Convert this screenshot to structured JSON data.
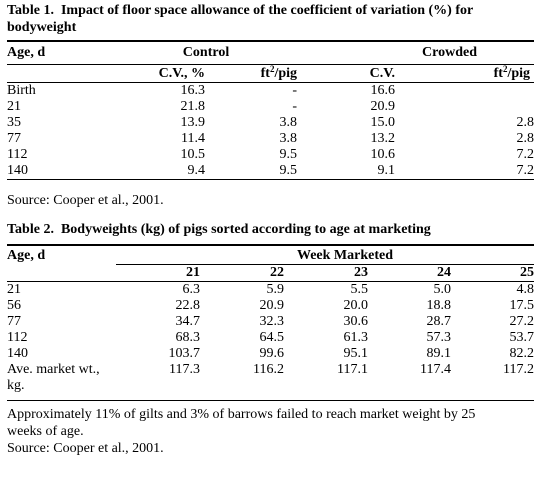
{
  "table1": {
    "caption_num": "Table 1.",
    "caption_text": "Impact of floor space allowance of the coefficient of variation (%) for bodyweight",
    "col_age": "Age, d",
    "group_control": "Control",
    "group_crowded": "Crowded",
    "sub_cv_control": "C.V., %",
    "sub_ft_control": "ft",
    "sub_cv_crowded": "C.V.",
    "sub_ft_crowded": "ft",
    "sup": "2",
    "per_pig": "/pig",
    "rows": [
      {
        "age": "Birth",
        "cv_c": "16.3",
        "ft_c": "-",
        "cv_x": "16.6",
        "ft_x": ""
      },
      {
        "age": "21",
        "cv_c": "21.8",
        "ft_c": "-",
        "cv_x": "20.9",
        "ft_x": ""
      },
      {
        "age": "35",
        "cv_c": "13.9",
        "ft_c": "3.8",
        "cv_x": "15.0",
        "ft_x": "2.8"
      },
      {
        "age": "77",
        "cv_c": "11.4",
        "ft_c": "3.8",
        "cv_x": "13.2",
        "ft_x": "2.8"
      },
      {
        "age": "112",
        "cv_c": "10.5",
        "ft_c": "9.5",
        "cv_x": "10.6",
        "ft_x": "7.2"
      },
      {
        "age": "140",
        "cv_c": "9.4",
        "ft_c": "9.5",
        "cv_x": "9.1",
        "ft_x": "7.2"
      }
    ],
    "source": "Source: Cooper et al., 2001."
  },
  "table2": {
    "caption_num": "Table 2.",
    "caption_text": "Bodyweights (kg) of pigs sorted according to age at marketing",
    "col_age": "Age, d",
    "group_week": "Week Marketed",
    "weeks": [
      "21",
      "22",
      "23",
      "24",
      "25"
    ],
    "rows": [
      {
        "age": "21",
        "v": [
          "6.3",
          "5.9",
          "5.5",
          "5.0",
          "4.8"
        ]
      },
      {
        "age": "56",
        "v": [
          "22.8",
          "20.9",
          "20.0",
          "18.8",
          "17.5"
        ]
      },
      {
        "age": "77",
        "v": [
          "34.7",
          "32.3",
          "30.6",
          "28.7",
          "27.2"
        ]
      },
      {
        "age": "112",
        "v": [
          "68.3",
          "64.5",
          "61.3",
          "57.3",
          "53.7"
        ]
      },
      {
        "age": "140",
        "v": [
          "103.7",
          "99.6",
          "95.1",
          "89.1",
          "82.2"
        ]
      }
    ],
    "market_label_1": "Ave. market wt.,",
    "market_label_2": "kg.",
    "market_values": [
      "117.3",
      "116.2",
      "117.1",
      "117.4",
      "117.2"
    ],
    "note_line1": "Approximately 11% of gilts and 3% of barrows failed to reach market weight by 25",
    "note_line2": "weeks of age.",
    "source": "Source: Cooper et al., 2001."
  }
}
